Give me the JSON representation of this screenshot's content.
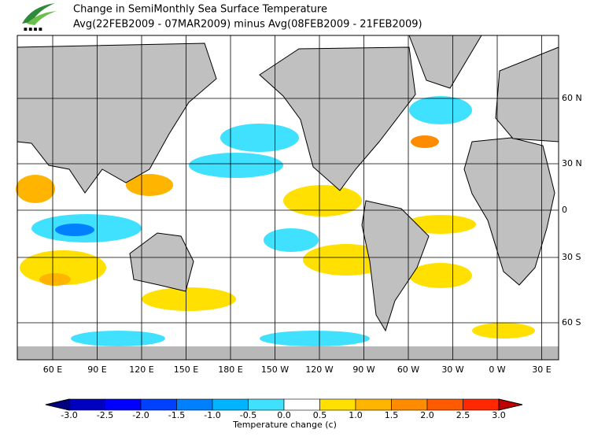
{
  "header": {
    "title": "Change in SemiMonthly Sea Surface Temperature",
    "subtitle": "Avg(22FEB2009 - 07MAR2009) minus Avg(08FEB2009 - 21FEB2009)"
  },
  "map": {
    "lon_labels": [
      "60 E",
      "90 E",
      "120 E",
      "150 E",
      "180 E",
      "150 W",
      "120 W",
      "90 W",
      "60 W",
      "30 W",
      "0 W",
      "30 E"
    ],
    "lat_labels": [
      "60 N",
      "30 N",
      "0",
      "30 S",
      "60 S"
    ]
  },
  "colorbar": {
    "ticks": [
      "-3.0",
      "-2.5",
      "-2.0",
      "-1.5",
      "-1.0",
      "-0.5",
      "0.0",
      "0.5",
      "1.0",
      "1.5",
      "2.0",
      "2.5",
      "3.0"
    ],
    "colors": [
      "#000080",
      "#0000c0",
      "#0000ff",
      "#0040ff",
      "#0080ff",
      "#00b4ff",
      "#40e0ff",
      "#ffffff",
      "#ffe000",
      "#ffb400",
      "#ff8c00",
      "#ff5a00",
      "#ff2800",
      "#c00000"
    ],
    "label": "Temperature change  (c)"
  }
}
